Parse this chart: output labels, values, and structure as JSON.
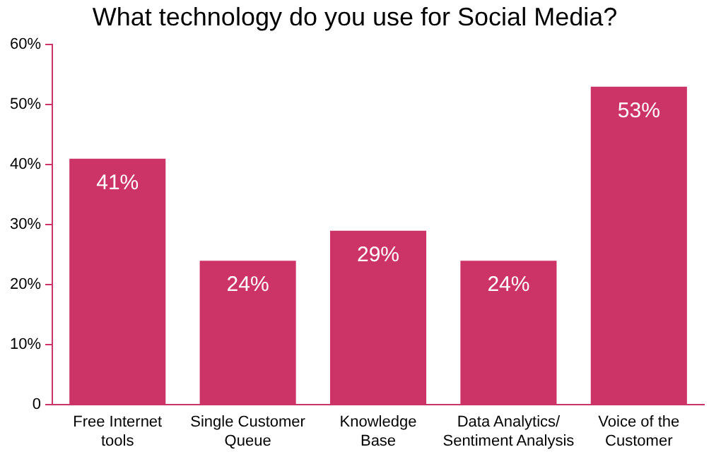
{
  "chart_data": {
    "type": "bar",
    "title": "What technology do you use for Social Media?",
    "categories": [
      "Free Internet tools",
      "Single Customer Queue",
      "Knowledge Base",
      "Data Analytics/ Sentiment Analysis",
      "Voice of the Customer"
    ],
    "values": [
      41,
      24,
      29,
      24,
      53
    ],
    "value_labels": [
      "41%",
      "24%",
      "29%",
      "24%",
      "53%"
    ],
    "color": "#cc3366",
    "ylim": [
      0,
      60
    ],
    "yticks": [
      {
        "value": 0,
        "label": "0"
      },
      {
        "value": 10,
        "label": "10%"
      },
      {
        "value": 20,
        "label": "20%"
      },
      {
        "value": 30,
        "label": "30%"
      },
      {
        "value": 40,
        "label": "40%"
      },
      {
        "value": 50,
        "label": "50%"
      },
      {
        "value": 60,
        "label": "60%"
      }
    ],
    "grid": false,
    "legend": false
  }
}
